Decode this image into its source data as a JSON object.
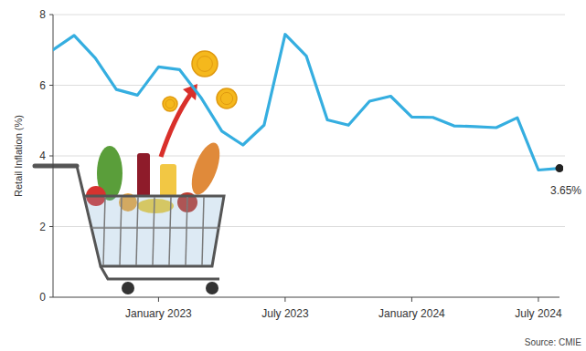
{
  "chart_data": {
    "type": "line",
    "y_label": "Retail Inflation (%)",
    "source": "Source: CMIE",
    "x": [
      "2022-08",
      "2022-09",
      "2022-10",
      "2022-11",
      "2022-12",
      "2023-01",
      "2023-02",
      "2023-03",
      "2023-04",
      "2023-05",
      "2023-06",
      "2023-07",
      "2023-08",
      "2023-09",
      "2023-10",
      "2023-11",
      "2023-12",
      "2024-01",
      "2024-02",
      "2024-03",
      "2024-04",
      "2024-05",
      "2024-06",
      "2024-07",
      "2024-08"
    ],
    "values": [
      7.0,
      7.41,
      6.77,
      5.88,
      5.72,
      6.52,
      6.44,
      5.66,
      4.7,
      4.31,
      4.87,
      7.44,
      6.83,
      5.02,
      4.87,
      5.55,
      5.69,
      5.1,
      5.09,
      4.85,
      4.83,
      4.8,
      5.08,
      3.6,
      3.65
    ],
    "color": "#35aee0",
    "xlim": [
      "2022-08",
      "2024-08"
    ],
    "xticks": [
      {
        "value": "2023-01",
        "label": "January 2023"
      },
      {
        "value": "2023-07",
        "label": "July 2023"
      },
      {
        "value": "2024-01",
        "label": "January 2024"
      },
      {
        "value": "2024-07",
        "label": "July 2024"
      }
    ],
    "ylim": [
      0,
      8
    ],
    "yticks": [
      0,
      2,
      4,
      6,
      8
    ],
    "grid": true,
    "annotations": [
      {
        "text": "3.65%",
        "x": "2024-08",
        "y": 3.65
      }
    ]
  }
}
